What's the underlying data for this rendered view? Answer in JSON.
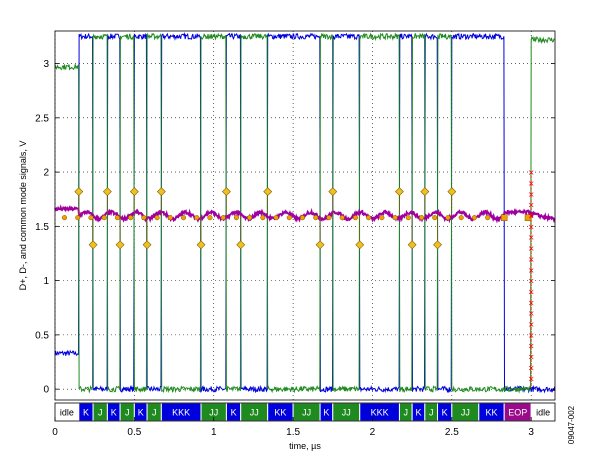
{
  "chart_data": {
    "type": "line",
    "title": "",
    "xlabel": "time, µs",
    "ylabel": "D+, D-, and common mode signals, V",
    "xlim": [
      0,
      3.15
    ],
    "ylim": [
      -0.1,
      3.3
    ],
    "grid": true,
    "x_ticks": [
      {
        "value": 0,
        "label": "0"
      },
      {
        "value": 0.5,
        "label": "0.5"
      },
      {
        "value": 1,
        "label": "1"
      },
      {
        "value": 1.5,
        "label": "1.5"
      },
      {
        "value": 2,
        "label": "2"
      },
      {
        "value": 2.5,
        "label": "2.5"
      },
      {
        "value": 3,
        "label": "3"
      }
    ],
    "y_ticks": [
      {
        "value": 0,
        "label": "0"
      },
      {
        "value": 0.5,
        "label": "0.5"
      },
      {
        "value": 1,
        "label": "1"
      },
      {
        "value": 1.5,
        "label": "1.5"
      },
      {
        "value": 2,
        "label": "2"
      },
      {
        "value": 2.5,
        "label": "2.5"
      },
      {
        "value": 3,
        "label": "3"
      }
    ],
    "signal_levels": {
      "high": 3.25,
      "low": 0.0,
      "common_mode": 1.6
    },
    "idle_levels": {
      "dplus": 2.97,
      "dminus": 0.33
    },
    "transitions": [
      0.15,
      0.24,
      0.33,
      0.41,
      0.5,
      0.58,
      0.67,
      0.92,
      1.08,
      1.17,
      1.34,
      1.67,
      1.75,
      1.92,
      2.17,
      2.25,
      2.33,
      2.41,
      2.5,
      2.83,
      2.91
    ],
    "eop": {
      "start": 2.83,
      "end": 3.0
    },
    "colors": {
      "dplus": "#1f8a1f",
      "dminus": "#0000dd",
      "common_mode": "#a000a0",
      "k_state": "#0000dd",
      "j_state": "#1f8a1f",
      "eop_state": "#9a0a8a",
      "idle_state": "#ffffff",
      "marker": "#f0c020",
      "sample_dots": "#f0a000",
      "eop_marks": "#ff0000"
    },
    "states": [
      {
        "start": 0.0,
        "end": 0.15,
        "label": "idle",
        "type": "idle"
      },
      {
        "start": 0.15,
        "end": 0.24,
        "label": "K",
        "type": "K"
      },
      {
        "start": 0.24,
        "end": 0.33,
        "label": "J",
        "type": "J"
      },
      {
        "start": 0.33,
        "end": 0.41,
        "label": "K",
        "type": "K"
      },
      {
        "start": 0.41,
        "end": 0.5,
        "label": "J",
        "type": "J"
      },
      {
        "start": 0.5,
        "end": 0.58,
        "label": "K",
        "type": "K"
      },
      {
        "start": 0.58,
        "end": 0.67,
        "label": "J",
        "type": "J"
      },
      {
        "start": 0.67,
        "end": 0.92,
        "label": "KKK",
        "type": "K"
      },
      {
        "start": 0.92,
        "end": 1.08,
        "label": "JJ",
        "type": "J"
      },
      {
        "start": 1.08,
        "end": 1.17,
        "label": "K",
        "type": "K"
      },
      {
        "start": 1.17,
        "end": 1.34,
        "label": "JJ",
        "type": "J"
      },
      {
        "start": 1.34,
        "end": 1.5,
        "label": "KK",
        "type": "K"
      },
      {
        "start": 1.5,
        "end": 1.67,
        "label": "JJ",
        "type": "J"
      },
      {
        "start": 1.67,
        "end": 1.75,
        "label": "K",
        "type": "K"
      },
      {
        "start": 1.75,
        "end": 1.92,
        "label": "JJ",
        "type": "J"
      },
      {
        "start": 1.92,
        "end": 2.17,
        "label": "KKK",
        "type": "K"
      },
      {
        "start": 2.17,
        "end": 2.25,
        "label": "J",
        "type": "J"
      },
      {
        "start": 2.25,
        "end": 2.33,
        "label": "K",
        "type": "K"
      },
      {
        "start": 2.33,
        "end": 2.41,
        "label": "J",
        "type": "J"
      },
      {
        "start": 2.41,
        "end": 2.5,
        "label": "K",
        "type": "K"
      },
      {
        "start": 2.5,
        "end": 2.67,
        "label": "JJ",
        "type": "J"
      },
      {
        "start": 2.67,
        "end": 2.83,
        "label": "KK",
        "type": "K"
      },
      {
        "start": 2.83,
        "end": 3.0,
        "label": "EOP",
        "type": "EOP"
      },
      {
        "start": 3.0,
        "end": 3.15,
        "label": "idle",
        "type": "idle"
      }
    ],
    "figure_id": "09047-002"
  }
}
